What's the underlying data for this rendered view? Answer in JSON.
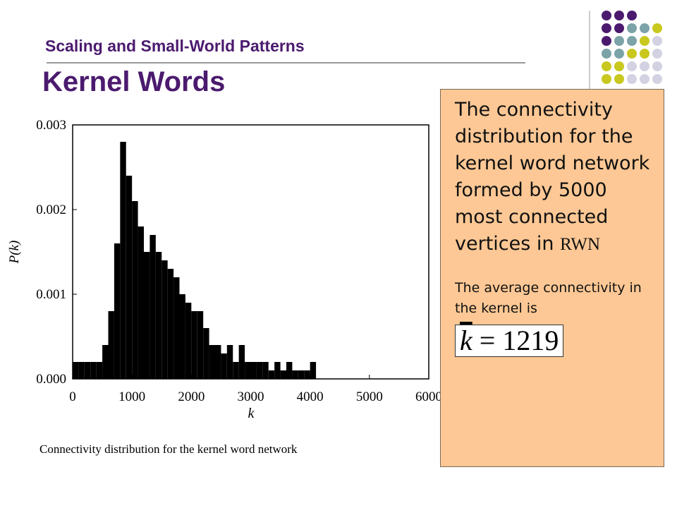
{
  "header": {
    "subtitle": "Scaling and Small-World Patterns",
    "title": "Kernel Words"
  },
  "chart_data": {
    "type": "histogram",
    "xlabel": "k",
    "ylabel": "P(k)",
    "caption": "Connectivity distribution for the kernel word network",
    "bins": [
      0,
      100,
      200,
      300,
      400,
      500,
      600,
      700,
      800,
      900,
      1000,
      1100,
      1200,
      1300,
      1400,
      1500,
      1600,
      1700,
      1800,
      1900,
      2000,
      2100,
      2200,
      2300,
      2400,
      2500,
      2600,
      2700,
      2800,
      2900,
      3000,
      3100,
      3200,
      3300,
      3400,
      3500,
      3600,
      3700,
      3800,
      3900,
      4000,
      4100
    ],
    "counts": [
      0.0002,
      0.0002,
      0.0002,
      0.0002,
      0.0002,
      0.0004,
      0.0008,
      0.0016,
      0.0028,
      0.0024,
      0.0021,
      0.0018,
      0.0015,
      0.0017,
      0.0015,
      0.0014,
      0.0013,
      0.0012,
      0.001,
      0.0009,
      0.0008,
      0.0008,
      0.0006,
      0.0004,
      0.0004,
      0.0003,
      0.0004,
      0.0002,
      0.0004,
      0.0002,
      0.0002,
      0.0002,
      0.0002,
      0.0001,
      0.0002,
      0.0001,
      0.0002,
      0.0001,
      0.0001,
      0.0001,
      0.0002
    ],
    "color": "#000000",
    "xlim": [
      0,
      6000
    ],
    "xticks": [
      0,
      1000,
      2000,
      3000,
      4000,
      5000,
      6000
    ],
    "ylim": [
      0,
      0.003
    ],
    "yticks": [
      {
        "value": 0,
        "label": "0.000"
      },
      {
        "value": 0.001,
        "label": "0.001"
      },
      {
        "value": 0.002,
        "label": "0.002"
      },
      {
        "value": 0.003,
        "label": "0.003"
      }
    ]
  },
  "note": {
    "paragraph1": "The connectivity distribution for the kernel word network formed by 5000 most connected vertices in",
    "paragraph1_end": "RWN",
    "paragraph2": "The average connectivity in the kernel is",
    "formula": {
      "lhs": "k",
      "rhs": "= 1219"
    }
  }
}
